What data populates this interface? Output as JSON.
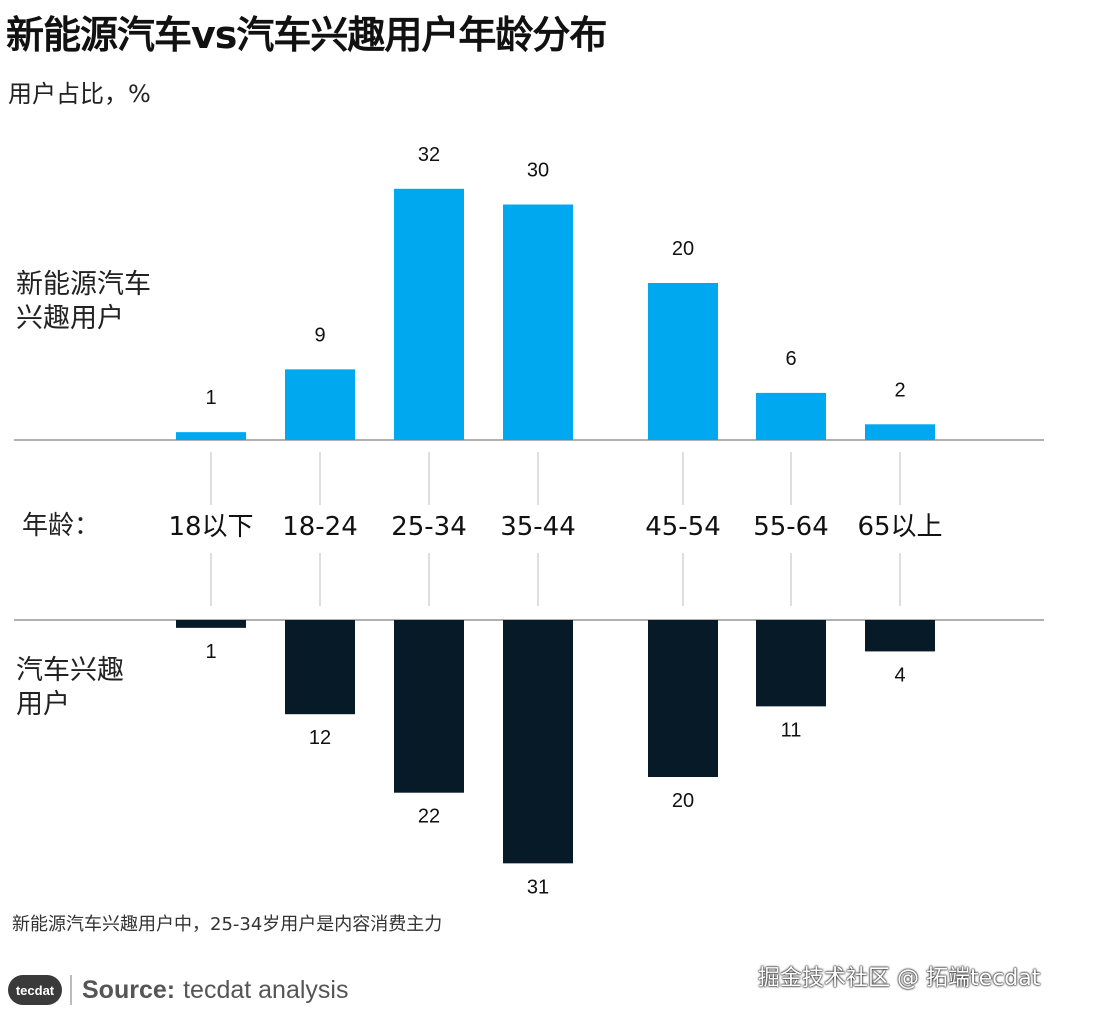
{
  "title": "新能源汽车vs汽车兴趣用户年龄分布",
  "subtitle": "用户占比，%",
  "age_axis_label": "年龄：",
  "top_series_label": "新能源汽车兴趣用户",
  "bottom_series_label": "汽车兴趣用户",
  "note": "新能源汽车兴趣用户中，25-34岁用户是内容消费主力",
  "source": {
    "logo": "tecdat",
    "lead": "Source:",
    "text": "tecdat analysis"
  },
  "watermark": "掘金技术社区 @ 拓端tecdat",
  "colors": {
    "top_series": "#00a8ef",
    "bottom_series": "#061a28",
    "axis": "#b0b0b0"
  },
  "chart_data": {
    "type": "bar",
    "layout": "mirrored",
    "categories": [
      "18以下",
      "18-24",
      "25-34",
      "35-44",
      "45-54",
      "55-64",
      "65以上"
    ],
    "series": [
      {
        "name": "新能源汽车兴趣用户",
        "values": [
          1,
          9,
          32,
          30,
          20,
          6,
          2
        ],
        "direction": "up"
      },
      {
        "name": "汽车兴趣用户",
        "values": [
          1,
          12,
          22,
          31,
          20,
          11,
          4
        ],
        "direction": "down"
      }
    ],
    "ylabel": "用户占比，%"
  }
}
